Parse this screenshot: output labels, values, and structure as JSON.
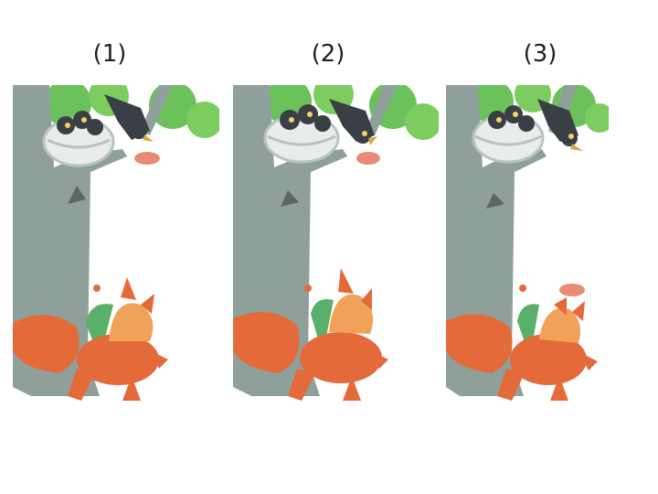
{
  "panels": [
    {
      "label": "(1)",
      "crow": "holding-meat",
      "meat": "falling-near-nest"
    },
    {
      "label": "(2)",
      "crow": "beak-open",
      "meat": "falling-midair"
    },
    {
      "label": "(3)",
      "crow": "looking-down",
      "meat": "near-fox"
    }
  ],
  "colors": {
    "trunk": "#8fa09a",
    "leaf": "#6cc25a",
    "fox": "#e46a3a",
    "crow": "#3a3f45",
    "meat": "#e98b76"
  }
}
